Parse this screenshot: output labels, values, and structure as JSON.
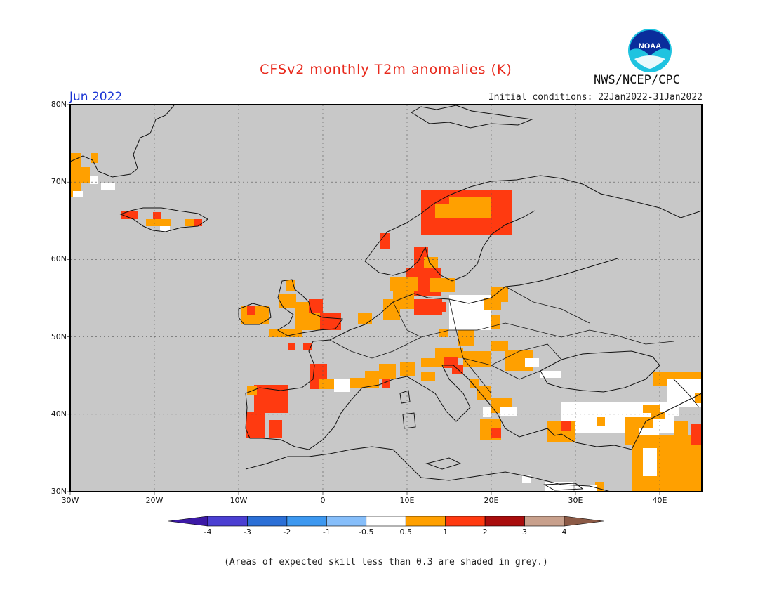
{
  "header": {
    "title": "CFSv2 monthly T2m anomalies (K)",
    "month": "Jun 2022",
    "initial_conditions": "Initial conditions: 22Jan2022-31Jan2022",
    "agency": "NWS/NCEP/CPC",
    "logo_text": "NOAA"
  },
  "axes": {
    "lat_labels": [
      "80N",
      "70N",
      "60N",
      "50N",
      "40N",
      "30N"
    ],
    "lon_labels": [
      "30W",
      "20W",
      "10W",
      "0",
      "10E",
      "20E",
      "30E",
      "40E"
    ],
    "lat_range": [
      30,
      80
    ],
    "lon_range": [
      -30,
      45
    ],
    "grid": true
  },
  "colorbar": {
    "colors": [
      "#3c19a6",
      "#4b3fd2",
      "#2b6fd6",
      "#3d98f0",
      "#86befa",
      "#ffffff",
      "#ffa000",
      "#ff3a10",
      "#a90d0d",
      "#c8a08c",
      "#8c5a46"
    ],
    "labels": [
      "-4",
      "-3",
      "-2",
      "-1",
      "-0.5",
      "0.5",
      "1",
      "2",
      "3",
      "4"
    ]
  },
  "footer": {
    "note": "(Areas of expected skill less than 0.3 are shaded in grey.)"
  }
}
